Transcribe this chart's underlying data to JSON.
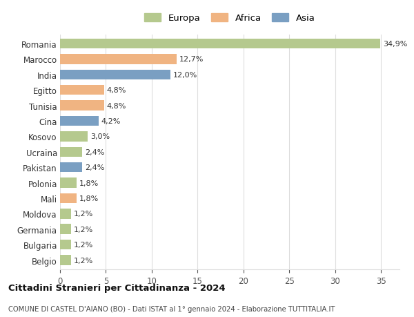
{
  "categories": [
    "Romania",
    "Marocco",
    "India",
    "Egitto",
    "Tunisia",
    "Cina",
    "Kosovo",
    "Ucraina",
    "Pakistan",
    "Polonia",
    "Mali",
    "Moldova",
    "Germania",
    "Bulgaria",
    "Belgio"
  ],
  "values": [
    34.9,
    12.7,
    12.0,
    4.8,
    4.8,
    4.2,
    3.0,
    2.4,
    2.4,
    1.8,
    1.8,
    1.2,
    1.2,
    1.2,
    1.2
  ],
  "labels": [
    "34,9%",
    "12,7%",
    "12,0%",
    "4,8%",
    "4,8%",
    "4,2%",
    "3,0%",
    "2,4%",
    "2,4%",
    "1,8%",
    "1,8%",
    "1,2%",
    "1,2%",
    "1,2%",
    "1,2%"
  ],
  "continents": [
    "Europa",
    "Africa",
    "Asia",
    "Africa",
    "Africa",
    "Asia",
    "Europa",
    "Europa",
    "Asia",
    "Europa",
    "Africa",
    "Europa",
    "Europa",
    "Europa",
    "Europa"
  ],
  "colors": {
    "Europa": "#b5c98e",
    "Africa": "#f0b482",
    "Asia": "#7a9fc2"
  },
  "xlim": [
    0,
    37
  ],
  "xticks": [
    0,
    5,
    10,
    15,
    20,
    25,
    30,
    35
  ],
  "title": "Cittadini Stranieri per Cittadinanza - 2024",
  "subtitle": "COMUNE DI CASTEL D'AIANO (BO) - Dati ISTAT al 1° gennaio 2024 - Elaborazione TUTTITALIA.IT",
  "background_color": "#ffffff",
  "grid_color": "#dddddd",
  "bar_height": 0.65
}
